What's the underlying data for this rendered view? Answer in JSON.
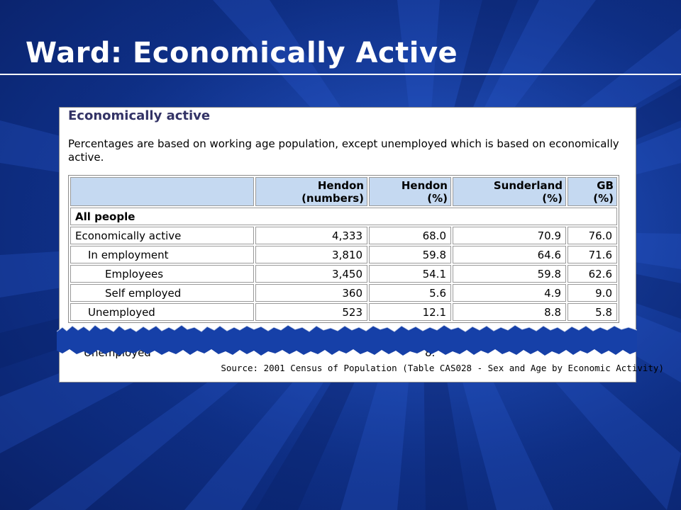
{
  "slide": {
    "title": "Ward: Economically Active"
  },
  "panel": {
    "heading": "Economically active",
    "note": "Percentages are based on working age population, except unemployed which is based on economically active.",
    "columns": [
      {
        "line1": "",
        "line2": ""
      },
      {
        "line1": "Hendon",
        "line2": "(numbers)"
      },
      {
        "line1": "Hendon",
        "line2": "(%)"
      },
      {
        "line1": "Sunderland",
        "line2": "(%)"
      },
      {
        "line1": "GB",
        "line2": "(%)"
      }
    ],
    "section_label": "All people",
    "rows": [
      {
        "label": "Economically active",
        "values": [
          "4,333",
          "68.0",
          "70.9",
          "76.0"
        ]
      },
      {
        "label": "In employment",
        "values": [
          "3,810",
          "59.8",
          "64.6",
          "71.6"
        ]
      },
      {
        "label": "Employees",
        "values": [
          "3,450",
          "54.1",
          "59.8",
          "62.6"
        ]
      },
      {
        "label": "Self employed",
        "values": [
          "360",
          "5.6",
          "4.9",
          "9.0"
        ]
      },
      {
        "label": "Unemployed",
        "values": [
          "523",
          "12.1",
          "8.8",
          "5.8"
        ]
      }
    ],
    "partial_row": {
      "label": "Unemployed",
      "value": "8."
    },
    "source": "Source: 2001 Census of Population (Table CAS028 - Sex and Age by Economic Activity)"
  },
  "colors": {
    "background": "#1640a8",
    "header_fill": "#c5d9f1",
    "heading_text": "#333366"
  }
}
